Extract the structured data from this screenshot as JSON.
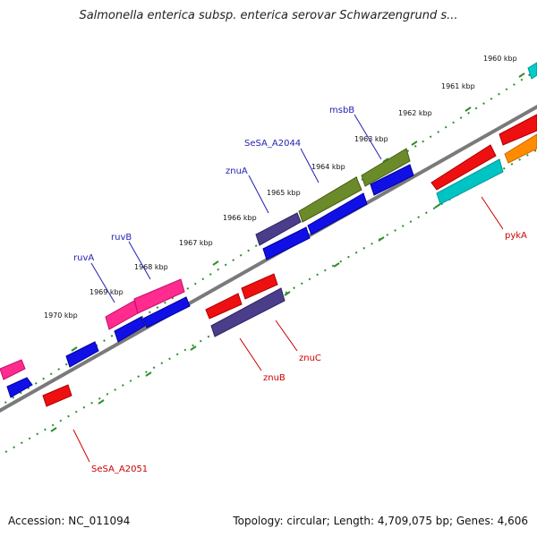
{
  "title": "Salmonella enterica subsp. enterica serovar Schwarzengrund s...",
  "footer": {
    "accession": "Accession: NC_011094",
    "stats": "Topology: circular; Length: 4,709,075 bp; Genes: 4,606"
  },
  "colors": {
    "backbone": "#7a7a7a",
    "dotted_track": "#2f8f2f",
    "forward_label": "#1f1fb4",
    "reverse_label": "#cc0000"
  },
  "tick_labels": [
    "1960 kbp",
    "1961 kbp",
    "1962 kbp",
    "1963 kbp",
    "1964 kbp",
    "1965 kbp",
    "1966 kbp",
    "1967 kbp",
    "1968 kbp",
    "1969 kbp",
    "1970 kbp"
  ],
  "gene_labels": [
    "msbB",
    "SeSA_A2044",
    "znuA",
    "ruvB",
    "ruvA",
    "pykA",
    "znuC",
    "znuB",
    "SeSA_A2051"
  ]
}
